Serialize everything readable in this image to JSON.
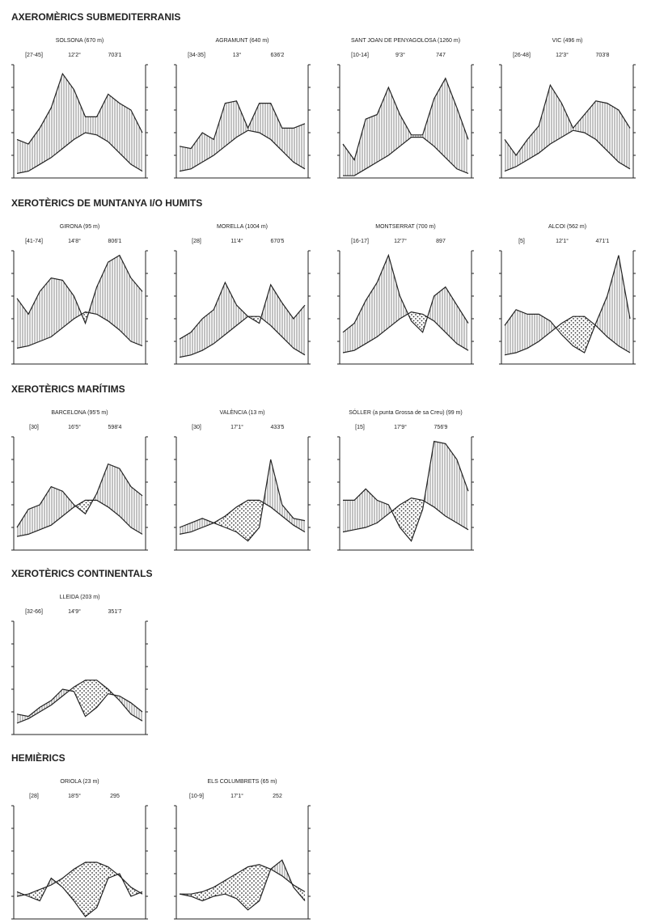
{
  "headings": [
    "AXEROMÈRICS SUBMEDITERRANIS",
    "XEROTÈRICS DE MUNTANYA I/O HUMITS",
    "XEROTÈRICS MARÍTIMS",
    "XEROTÈRICS CONTINENTALS",
    "HEMIÈRICS"
  ],
  "chart_data": [
    {
      "type": "climate",
      "title": "SOLSONA (670 m)",
      "annotations": [
        "[27-45]",
        "12'2°",
        "703'1"
      ],
      "ylim": [
        0,
        50
      ],
      "yticks": [
        0,
        10,
        20,
        30,
        40,
        50
      ],
      "series": [
        {
          "color": "#222",
          "values": [
            2,
            3,
            6,
            9,
            13,
            17,
            20,
            19,
            16,
            11,
            6,
            3
          ]
        },
        {
          "color": "#222",
          "values": [
            17,
            15,
            22,
            31,
            46,
            39,
            27,
            27,
            37,
            33,
            30,
            20
          ]
        }
      ]
    },
    {
      "type": "climate",
      "title": "AGRAMUNT (640 m)",
      "annotations": [
        "[34-35]",
        "13°",
        "636'2"
      ],
      "ylim": [
        0,
        50
      ],
      "yticks": [
        0,
        10,
        20,
        30,
        40,
        50
      ],
      "series": [
        {
          "color": "#222",
          "values": [
            3,
            4,
            7,
            10,
            14,
            18,
            21,
            20,
            17,
            12,
            7,
            4
          ]
        },
        {
          "color": "#222",
          "values": [
            14,
            13,
            20,
            17,
            33,
            34,
            22,
            33,
            33,
            22,
            22,
            24
          ]
        }
      ]
    },
    {
      "type": "climate",
      "title": "SANT JOAN DE PENYAGOLOSA (1260 m)",
      "annotations": [
        "[10-14]",
        "9'3°",
        "747"
      ],
      "ylim": [
        0,
        50
      ],
      "yticks": [
        0,
        10,
        20,
        30,
        40,
        50
      ],
      "series": [
        {
          "color": "#222",
          "values": [
            1,
            1,
            4,
            7,
            10,
            14,
            18,
            18,
            14,
            9,
            4,
            2
          ]
        },
        {
          "color": "#222",
          "values": [
            15,
            8,
            26,
            28,
            40,
            28,
            19,
            19,
            35,
            44,
            31,
            17
          ]
        }
      ]
    },
    {
      "type": "climate",
      "title": "VIC (496 m)",
      "annotations": [
        "[26-48]",
        "12'3°",
        "703'8"
      ],
      "ylim": [
        0,
        50
      ],
      "yticks": [
        0,
        10,
        20,
        30,
        40,
        50
      ],
      "series": [
        {
          "color": "#222",
          "values": [
            3,
            5,
            8,
            11,
            15,
            18,
            21,
            20,
            17,
            12,
            7,
            4
          ]
        },
        {
          "color": "#222",
          "values": [
            17,
            10,
            17,
            23,
            41,
            33,
            22,
            28,
            34,
            33,
            30,
            22
          ]
        }
      ]
    },
    {
      "type": "climate",
      "title": "GIRONA (95 m)",
      "annotations": [
        "[41-74]",
        "14'8°",
        "806'1"
      ],
      "ylim": [
        0,
        50
      ],
      "yticks": [
        0,
        10,
        20,
        30,
        40,
        50
      ],
      "series": [
        {
          "color": "#222",
          "values": [
            7,
            8,
            10,
            12,
            16,
            20,
            23,
            22,
            19,
            15,
            10,
            8
          ]
        },
        {
          "color": "#222",
          "values": [
            29,
            22,
            32,
            38,
            37,
            30,
            18,
            34,
            45,
            48,
            38,
            32
          ]
        }
      ]
    },
    {
      "type": "climate",
      "title": "MORELLA (1004 m)",
      "annotations": [
        "[28]",
        "11'4°",
        "670'5"
      ],
      "ylim": [
        0,
        50
      ],
      "yticks": [
        0,
        10,
        20,
        30,
        40,
        50
      ],
      "series": [
        {
          "color": "#222",
          "values": [
            3,
            4,
            6,
            9,
            13,
            17,
            21,
            21,
            17,
            12,
            7,
            4
          ]
        },
        {
          "color": "#222",
          "values": [
            11,
            14,
            20,
            24,
            36,
            26,
            21,
            18,
            35,
            27,
            20,
            26
          ]
        }
      ]
    },
    {
      "type": "climate",
      "title": "MONTSERRAT (700 m)",
      "annotations": [
        "[16-17]",
        "12'7°",
        "897"
      ],
      "ylim": [
        0,
        50
      ],
      "yticks": [
        0,
        10,
        20,
        30,
        40,
        50
      ],
      "series": [
        {
          "color": "#222",
          "values": [
            5,
            6,
            9,
            12,
            16,
            20,
            23,
            22,
            19,
            14,
            9,
            6
          ]
        },
        {
          "color": "#222",
          "values": [
            14,
            18,
            28,
            36,
            48,
            30,
            19,
            14,
            30,
            34,
            26,
            18
          ]
        }
      ]
    },
    {
      "type": "climate",
      "title": "ALCOI (562 m)",
      "annotations": [
        "[5]",
        "12'1°",
        "471'1"
      ],
      "ylim": [
        0,
        50
      ],
      "yticks": [
        0,
        10,
        20,
        30,
        40,
        50
      ],
      "series": [
        {
          "color": "#222",
          "values": [
            4,
            5,
            7,
            10,
            14,
            18,
            21,
            21,
            17,
            12,
            8,
            5
          ]
        },
        {
          "color": "#222",
          "values": [
            17,
            24,
            22,
            22,
            19,
            13,
            8,
            5,
            18,
            30,
            48,
            20
          ]
        }
      ]
    },
    {
      "type": "climate",
      "title": "BARCELONA (95'5 m)",
      "annotations": [
        "[30]",
        "16'5°",
        "598'4"
      ],
      "ylim": [
        0,
        50
      ],
      "yticks": [
        0,
        10,
        20,
        30,
        40,
        50
      ],
      "series": [
        {
          "color": "#222",
          "values": [
            6,
            7,
            9,
            11,
            15,
            19,
            22,
            22,
            19,
            15,
            10,
            7
          ]
        },
        {
          "color": "#222",
          "values": [
            10,
            18,
            20,
            28,
            26,
            20,
            16,
            25,
            38,
            36,
            28,
            24
          ]
        }
      ]
    },
    {
      "type": "climate",
      "title": "VALÈNCIA (13 m)",
      "annotations": [
        "[30]",
        "17'1°",
        "433'5"
      ],
      "ylim": [
        0,
        50
      ],
      "yticks": [
        0,
        10,
        20,
        30,
        40,
        50
      ],
      "series": [
        {
          "color": "#222",
          "values": [
            7,
            8,
            10,
            12,
            15,
            19,
            22,
            22,
            19,
            15,
            11,
            8
          ]
        },
        {
          "color": "#222",
          "values": [
            10,
            12,
            14,
            12,
            10,
            8,
            4,
            10,
            40,
            20,
            14,
            13
          ]
        }
      ]
    },
    {
      "type": "climate",
      "title": "SÓLLER (a punta Grossa de sa Creu) (99 m)",
      "annotations": [
        "[15]",
        "17'9°",
        "756'9"
      ],
      "ylim": [
        0,
        50
      ],
      "yticks": [
        0,
        10,
        20,
        30,
        40,
        50
      ],
      "series": [
        {
          "color": "#222",
          "values": [
            8,
            9,
            10,
            12,
            16,
            20,
            23,
            22,
            19,
            15,
            12,
            9
          ]
        },
        {
          "color": "#222",
          "values": [
            22,
            22,
            27,
            22,
            20,
            10,
            4,
            18,
            48,
            47,
            40,
            26
          ]
        }
      ]
    },
    {
      "type": "climate",
      "title": "LLEIDA (203 m)",
      "annotations": [
        "[32-66]",
        "14'9°",
        "351'7"
      ],
      "ylim": [
        0,
        50
      ],
      "yticks": [
        0,
        10,
        20,
        30,
        40,
        50
      ],
      "series": [
        {
          "color": "#222",
          "values": [
            5,
            7,
            10,
            13,
            17,
            21,
            24,
            24,
            20,
            15,
            9,
            6
          ]
        },
        {
          "color": "#222",
          "values": [
            9,
            8,
            12,
            15,
            20,
            19,
            8,
            12,
            18,
            17,
            14,
            10
          ]
        }
      ]
    },
    {
      "type": "climate",
      "title": "ORIOLA (23 m)",
      "annotations": [
        "[28]",
        "18'5°",
        "295"
      ],
      "ylim": [
        0,
        50
      ],
      "yticks": [
        0,
        10,
        20,
        30,
        40,
        50
      ],
      "series": [
        {
          "color": "#222",
          "values": [
            10,
            11,
            13,
            15,
            18,
            22,
            25,
            25,
            23,
            19,
            14,
            11
          ]
        },
        {
          "color": "#222",
          "values": [
            12,
            10,
            8,
            18,
            14,
            8,
            1,
            5,
            18,
            20,
            10,
            12
          ]
        }
      ]
    },
    {
      "type": "climate",
      "title": "ELS COLUMBRETS (65 m)",
      "annotations": [
        "[10-9]",
        "17'1°",
        "252"
      ],
      "ylim": [
        0,
        50
      ],
      "yticks": [
        0,
        10,
        20,
        30,
        40,
        50
      ],
      "series": [
        {
          "color": "#222",
          "values": [
            11,
            11,
            12,
            14,
            17,
            20,
            23,
            24,
            22,
            19,
            15,
            12
          ]
        },
        {
          "color": "#222",
          "values": [
            11,
            10,
            8,
            10,
            11,
            9,
            4,
            8,
            22,
            26,
            14,
            8
          ]
        }
      ]
    }
  ]
}
